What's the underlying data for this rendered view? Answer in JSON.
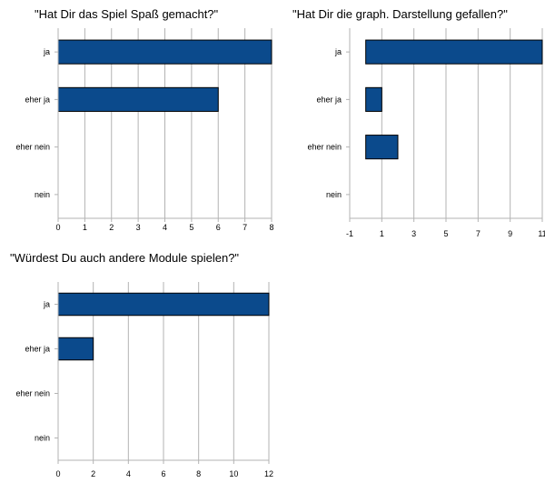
{
  "chart_data": [
    {
      "type": "bar",
      "orientation": "horizontal",
      "title": "\"Hat Dir das Spiel Spaß gemacht?\"",
      "categories": [
        "ja",
        "eher ja",
        "eher nein",
        "nein"
      ],
      "values": [
        8,
        6,
        0,
        0
      ],
      "xlim": [
        0,
        8
      ],
      "xticks": [
        0,
        1,
        2,
        3,
        4,
        5,
        6,
        7,
        8
      ],
      "grid": true,
      "bar_color": "#0b4a8c"
    },
    {
      "type": "bar",
      "orientation": "horizontal",
      "title": "\"Hat Dir die graph. Darstellung gefallen?\"",
      "categories": [
        "ja",
        "eher ja",
        "eher nein",
        "nein"
      ],
      "values": [
        11,
        1,
        2,
        0
      ],
      "xlim": [
        -1,
        11
      ],
      "xticks": [
        -1,
        1,
        3,
        5,
        7,
        9,
        11
      ],
      "grid": true,
      "bar_color": "#0b4a8c"
    },
    {
      "type": "bar",
      "orientation": "horizontal",
      "title": "\"Würdest Du auch andere Module spielen?\"",
      "categories": [
        "ja",
        "eher ja",
        "eher nein",
        "nein"
      ],
      "values": [
        12,
        2,
        0,
        0
      ],
      "xlim": [
        0,
        12
      ],
      "xticks": [
        0,
        2,
        4,
        6,
        8,
        10,
        12
      ],
      "grid": true,
      "bar_color": "#0b4a8c"
    }
  ]
}
